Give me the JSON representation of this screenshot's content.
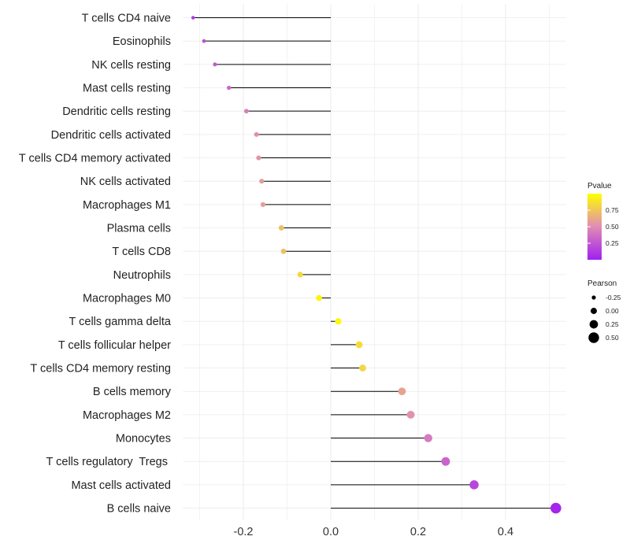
{
  "chart_data": {
    "type": "lollipop",
    "xticks": [
      -0.2,
      0.0,
      0.2,
      0.4
    ],
    "xlim": [
      -0.32,
      0.52
    ],
    "baseline": 0,
    "points": [
      {
        "label": "T cells CD4 naive",
        "value": -0.315,
        "pvalue": 0.12
      },
      {
        "label": "Eosinophils",
        "value": -0.29,
        "pvalue": 0.22
      },
      {
        "label": "NK cells resting",
        "value": -0.265,
        "pvalue": 0.27
      },
      {
        "label": "Mast cells resting",
        "value": -0.233,
        "pvalue": 0.34
      },
      {
        "label": "Dendritic cells resting",
        "value": -0.193,
        "pvalue": 0.44
      },
      {
        "label": "Dendritic cells activated",
        "value": -0.17,
        "pvalue": 0.52
      },
      {
        "label": "T cells CD4 memory activated",
        "value": -0.165,
        "pvalue": 0.54
      },
      {
        "label": "NK cells activated",
        "value": -0.158,
        "pvalue": 0.57
      },
      {
        "label": "Macrophages M1",
        "value": -0.155,
        "pvalue": 0.58
      },
      {
        "label": "Plasma cells",
        "value": -0.113,
        "pvalue": 0.72
      },
      {
        "label": "T cells CD8",
        "value": -0.108,
        "pvalue": 0.73
      },
      {
        "label": "Neutrophils",
        "value": -0.07,
        "pvalue": 0.83
      },
      {
        "label": "Macrophages M0",
        "value": -0.027,
        "pvalue": 0.95
      },
      {
        "label": "T cells gamma delta",
        "value": 0.017,
        "pvalue": 0.96
      },
      {
        "label": "T cells follicular helper",
        "value": 0.065,
        "pvalue": 0.85
      },
      {
        "label": "T cells CD4 memory resting",
        "value": 0.073,
        "pvalue": 0.82
      },
      {
        "label": "B cells memory",
        "value": 0.163,
        "pvalue": 0.6
      },
      {
        "label": "Macrophages M2",
        "value": 0.183,
        "pvalue": 0.53
      },
      {
        "label": "Monocytes",
        "value": 0.223,
        "pvalue": 0.42
      },
      {
        "label": "T cells regulatory  Tregs ",
        "value": 0.263,
        "pvalue": 0.32
      },
      {
        "label": "Mast cells activated",
        "value": 0.328,
        "pvalue": 0.18
      },
      {
        "label": "B cells naive",
        "value": 0.515,
        "pvalue": 0.03
      }
    ],
    "color_legend": {
      "title": "Pvalue",
      "ticks": [
        0.75,
        0.5,
        0.25
      ],
      "tick_labels": [
        "0.75",
        "0.50",
        "0.25"
      ],
      "range": [
        0.0,
        1.0
      ],
      "low_color": "#a020f0",
      "mid_color": "#e08cb4",
      "high_color": "#ffff00"
    },
    "size_legend": {
      "title": "Pearson",
      "values": [
        -0.25,
        0.0,
        0.25,
        0.5
      ],
      "labels": [
        "-0.25",
        "0.00",
        "0.25",
        "0.50"
      ]
    },
    "colors": {
      "stem": "#000000",
      "grid": "#ebebeb"
    }
  }
}
